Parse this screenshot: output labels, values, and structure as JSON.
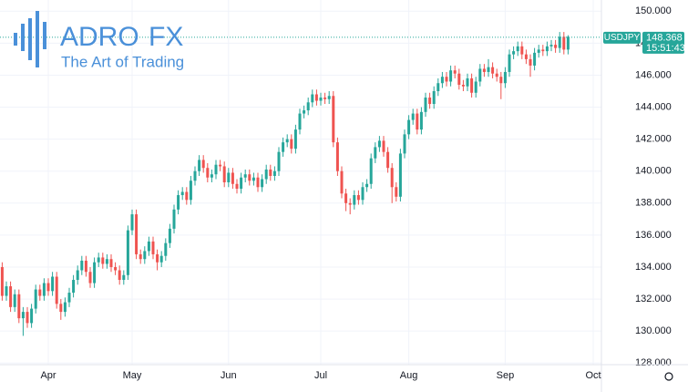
{
  "logo": {
    "name": "ADRO",
    "accent": "FX",
    "tagline": "The Art of Trading"
  },
  "chart_data": {
    "type": "candlestick",
    "symbol": "USDJPY",
    "last_price": 148.368,
    "countdown": "15:51:43",
    "up_color": "#26a69a",
    "down_color": "#ef5350",
    "grid": true,
    "ylim": [
      127.9,
      150.7
    ],
    "yticks": [
      {
        "value": 128,
        "label": "128.000"
      },
      {
        "value": 130,
        "label": "130.000"
      },
      {
        "value": 132,
        "label": "132.000"
      },
      {
        "value": 134,
        "label": "134.000"
      },
      {
        "value": 136,
        "label": "136.000"
      },
      {
        "value": 138,
        "label": "138.000"
      },
      {
        "value": 140,
        "label": "140.000"
      },
      {
        "value": 142,
        "label": "142.000"
      },
      {
        "value": 144,
        "label": "144.000"
      },
      {
        "value": 146,
        "label": "146.000"
      },
      {
        "value": 148,
        "label": "148.000"
      },
      {
        "value": 150,
        "label": "150.000"
      }
    ],
    "categories": [
      null,
      null,
      null,
      null,
      null,
      null,
      null,
      null,
      null,
      null,
      null,
      "Apr",
      null,
      null,
      null,
      null,
      null,
      null,
      null,
      null,
      null,
      null,
      null,
      null,
      null,
      null,
      null,
      null,
      null,
      null,
      null,
      "May",
      null,
      null,
      null,
      null,
      null,
      null,
      null,
      null,
      null,
      null,
      null,
      null,
      null,
      null,
      null,
      null,
      null,
      null,
      null,
      null,
      null,
      null,
      "Jun",
      null,
      null,
      null,
      null,
      null,
      null,
      null,
      null,
      null,
      null,
      null,
      null,
      null,
      null,
      null,
      null,
      null,
      null,
      null,
      null,
      null,
      "Jul",
      null,
      null,
      null,
      null,
      null,
      null,
      null,
      null,
      null,
      null,
      null,
      null,
      null,
      null,
      null,
      null,
      null,
      null,
      null,
      null,
      "Aug",
      null,
      null,
      null,
      null,
      null,
      null,
      null,
      null,
      null,
      null,
      null,
      null,
      null,
      null,
      null,
      null,
      null,
      null,
      null,
      null,
      null,
      null,
      "Sep",
      null,
      null,
      null,
      null,
      null,
      null,
      null,
      null,
      null,
      null,
      null,
      null,
      null,
      null,
      null,
      null,
      null,
      null,
      null,
      null,
      "Oct"
    ],
    "open": [
      134.0,
      132.2,
      132.8,
      131.5,
      132.3,
      130.8,
      131.2,
      130.5,
      131.4,
      132.6,
      132.2,
      133.0,
      132.5,
      133.4,
      131.7,
      131.2,
      131.8,
      132.4,
      133.2,
      133.8,
      134.4,
      133.7,
      133.0,
      134.3,
      134.6,
      134.2,
      134.5,
      134.0,
      133.8,
      133.2,
      133.5,
      136.3,
      137.3,
      134.8,
      134.5,
      135.0,
      135.6,
      134.8,
      134.3,
      134.7,
      135.5,
      136.4,
      137.6,
      138.5,
      138.7,
      138.2,
      139.4,
      140.0,
      140.7,
      140.2,
      139.6,
      139.8,
      140.4,
      140.3,
      139.3,
      139.9,
      139.2,
      138.9,
      139.6,
      139.8,
      139.4,
      139.6,
      139.0,
      139.5,
      140.1,
      139.7,
      140.0,
      141.2,
      141.8,
      142.0,
      141.4,
      142.6,
      143.6,
      143.8,
      144.3,
      144.8,
      144.4,
      144.6,
      144.5,
      144.7,
      141.8,
      140.0,
      138.6,
      138.0,
      137.9,
      138.5,
      138.2,
      139.0,
      139.2,
      140.8,
      141.5,
      141.9,
      141.2,
      140.2,
      139.0,
      138.4,
      141.1,
      142.3,
      143.2,
      143.6,
      142.6,
      143.7,
      144.6,
      144.2,
      145.0,
      145.5,
      145.9,
      145.6,
      146.3,
      146.1,
      145.4,
      145.3,
      145.8,
      144.9,
      145.6,
      146.4,
      146.2,
      146.5,
      146.1,
      145.9,
      145.5,
      146.2,
      147.3,
      147.5,
      147.8,
      147.3,
      147.0,
      146.6,
      147.4,
      147.6,
      147.5,
      147.8,
      147.9,
      147.7,
      148.4,
      147.6,
      null,
      null,
      null,
      null,
      null,
      null
    ],
    "high": [
      134.3,
      133.1,
      133.1,
      132.6,
      132.6,
      131.5,
      131.5,
      131.7,
      132.9,
      132.9,
      133.3,
      133.3,
      133.7,
      133.7,
      132.0,
      132.1,
      132.7,
      133.5,
      134.1,
      134.7,
      134.7,
      134.0,
      134.6,
      134.9,
      134.9,
      134.8,
      134.8,
      134.3,
      134.1,
      133.8,
      136.6,
      137.6,
      137.6,
      135.1,
      135.3,
      135.9,
      135.9,
      135.1,
      135.0,
      135.8,
      136.7,
      137.9,
      138.8,
      139.0,
      139.0,
      139.7,
      140.3,
      141.0,
      141.0,
      140.5,
      140.1,
      140.7,
      140.7,
      140.6,
      140.2,
      140.2,
      139.5,
      139.9,
      140.1,
      140.1,
      139.9,
      139.9,
      139.8,
      140.4,
      140.4,
      140.3,
      141.5,
      142.1,
      142.3,
      142.3,
      142.9,
      143.9,
      144.1,
      144.6,
      145.1,
      145.1,
      144.9,
      144.9,
      145.0,
      145.0,
      142.1,
      140.3,
      138.9,
      138.3,
      138.8,
      138.8,
      139.3,
      139.5,
      141.1,
      141.8,
      142.2,
      142.2,
      141.5,
      140.5,
      139.3,
      141.4,
      142.6,
      143.5,
      143.9,
      143.9,
      144.0,
      144.9,
      144.9,
      145.3,
      145.8,
      146.2,
      146.2,
      146.6,
      146.6,
      146.4,
      145.7,
      146.1,
      146.1,
      145.9,
      146.7,
      146.7,
      147.0,
      146.8,
      146.4,
      146.2,
      146.5,
      147.6,
      147.8,
      148.1,
      148.1,
      147.6,
      147.3,
      147.7,
      147.9,
      147.9,
      148.1,
      148.2,
      148.2,
      148.7,
      148.7,
      148.5,
      null,
      null,
      null,
      null,
      null,
      null
    ],
    "low": [
      131.9,
      131.9,
      131.2,
      131.2,
      130.5,
      129.7,
      130.2,
      130.2,
      131.1,
      131.9,
      131.9,
      132.2,
      132.2,
      131.4,
      130.7,
      130.9,
      131.5,
      132.1,
      132.9,
      133.5,
      133.4,
      132.7,
      132.7,
      134.0,
      133.9,
      133.9,
      133.7,
      133.5,
      132.9,
      132.9,
      133.2,
      136.0,
      134.5,
      134.2,
      134.2,
      134.7,
      134.5,
      133.8,
      134.0,
      134.4,
      135.2,
      136.1,
      137.3,
      138.2,
      137.9,
      137.9,
      139.1,
      139.7,
      139.9,
      139.3,
      139.3,
      139.5,
      140.0,
      139.0,
      139.0,
      138.9,
      138.6,
      138.6,
      139.3,
      139.1,
      139.1,
      138.7,
      138.7,
      139.2,
      139.4,
      139.4,
      139.7,
      140.9,
      141.5,
      141.1,
      141.1,
      142.3,
      143.3,
      143.5,
      144.0,
      144.1,
      144.1,
      144.2,
      144.2,
      141.5,
      139.7,
      138.3,
      137.5,
      137.3,
      137.6,
      137.9,
      137.9,
      138.7,
      138.9,
      140.5,
      141.2,
      140.9,
      139.9,
      138.0,
      138.1,
      138.1,
      140.8,
      142.0,
      142.9,
      142.3,
      142.3,
      143.4,
      143.9,
      143.9,
      144.7,
      145.2,
      145.3,
      145.3,
      145.8,
      145.1,
      145.0,
      145.0,
      144.6,
      144.6,
      145.3,
      145.9,
      145.9,
      145.8,
      145.6,
      144.5,
      145.2,
      145.9,
      147.0,
      147.2,
      147.0,
      146.7,
      145.9,
      146.3,
      147.1,
      147.2,
      147.2,
      147.5,
      147.4,
      147.4,
      147.3,
      147.3,
      null,
      null,
      null,
      null,
      null,
      null
    ],
    "close": [
      132.2,
      132.8,
      131.5,
      132.3,
      130.8,
      131.2,
      130.5,
      131.4,
      132.6,
      132.2,
      133.0,
      132.5,
      133.4,
      131.7,
      131.2,
      131.8,
      132.4,
      133.2,
      133.8,
      134.4,
      133.7,
      133.0,
      134.3,
      134.6,
      134.2,
      134.5,
      134.0,
      133.8,
      133.2,
      133.5,
      136.3,
      137.3,
      134.8,
      134.5,
      135.0,
      135.6,
      134.8,
      134.3,
      134.7,
      135.5,
      136.4,
      137.6,
      138.5,
      138.7,
      138.2,
      139.4,
      140.0,
      140.7,
      140.2,
      139.6,
      139.8,
      140.4,
      140.3,
      139.3,
      139.9,
      139.2,
      138.9,
      139.6,
      139.8,
      139.4,
      139.6,
      139.0,
      139.5,
      140.1,
      139.7,
      140.0,
      141.2,
      141.8,
      142.0,
      141.4,
      142.6,
      143.6,
      143.8,
      144.3,
      144.8,
      144.4,
      144.6,
      144.5,
      144.7,
      141.8,
      140.0,
      138.6,
      138.0,
      137.9,
      138.5,
      138.2,
      139.0,
      139.2,
      140.8,
      141.5,
      141.9,
      141.2,
      140.2,
      139.0,
      138.4,
      141.1,
      142.3,
      143.2,
      143.6,
      142.6,
      143.7,
      144.6,
      144.2,
      145.0,
      145.5,
      145.9,
      145.6,
      146.3,
      146.1,
      145.4,
      145.3,
      145.8,
      144.9,
      145.6,
      146.4,
      146.2,
      146.5,
      146.1,
      145.9,
      145.5,
      146.2,
      147.3,
      147.5,
      147.8,
      147.3,
      147.0,
      146.6,
      147.4,
      147.6,
      147.5,
      147.8,
      147.9,
      147.7,
      148.4,
      147.6,
      148.4,
      null,
      null,
      null,
      null,
      null,
      null
    ]
  }
}
